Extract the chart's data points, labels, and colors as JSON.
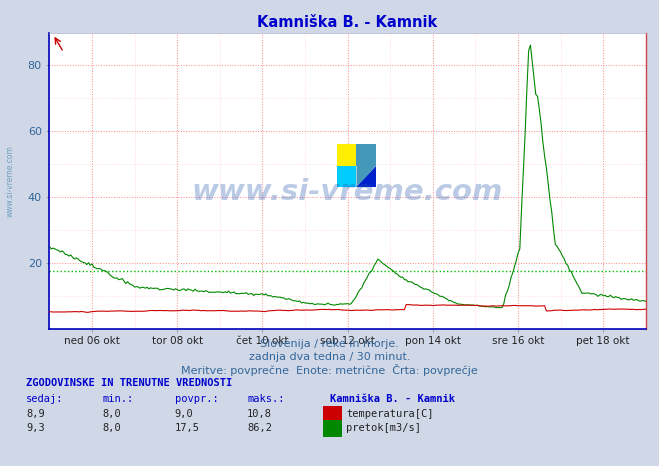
{
  "title": "Kamniška B. - Kamnik",
  "title_color": "#0000cc",
  "bg_color": "#d0d8e8",
  "plot_bg_color": "#ffffff",
  "grid_color_major": "#ff8888",
  "grid_color_minor": "#ffcccc",
  "x_tick_labels": [
    "ned 06 okt",
    "tor 08 okt",
    "čet 10 okt",
    "sob 12 okt",
    "pon 14 okt",
    "sre 16 okt",
    "pet 18 okt"
  ],
  "y_ticks": [
    20,
    40,
    60,
    80
  ],
  "ylim": [
    0,
    90
  ],
  "xlim": [
    0,
    336
  ],
  "x_tick_positions": [
    24,
    72,
    120,
    168,
    216,
    264,
    312
  ],
  "temp_color": "#cc0000",
  "flow_color": "#008800",
  "avg_line_color": "#00bb00",
  "avg_line_value": 17.5,
  "watermark_text": "www.si-vreme.com",
  "watermark_color": "#2255aa",
  "watermark_alpha": 0.3,
  "subtitle1": "Slovenija / reke in morje.",
  "subtitle2": "zadnja dva tedna / 30 minut.",
  "subtitle3": "Meritve: povprečne  Enote: metrične  Črta: povprečje",
  "subtitle_color": "#336699",
  "table_header": "ZGODOVINSKE IN TRENUTNE VREDNOSTI",
  "table_color": "#0000cc",
  "col_headers": [
    "sedaj:",
    "min.:",
    "povpr.:",
    "maks.:",
    "Kamniška B. - Kamnik"
  ],
  "temp_row": [
    "8,9",
    "8,0",
    "9,0",
    "10,8",
    "temperatura[C]"
  ],
  "flow_row": [
    "9,3",
    "8,0",
    "17,5",
    "86,2",
    "pretok[m3/s]"
  ],
  "ylabel_text": "www.si-vreme.com",
  "ylabel_color": "#4488aa",
  "n_points": 672
}
